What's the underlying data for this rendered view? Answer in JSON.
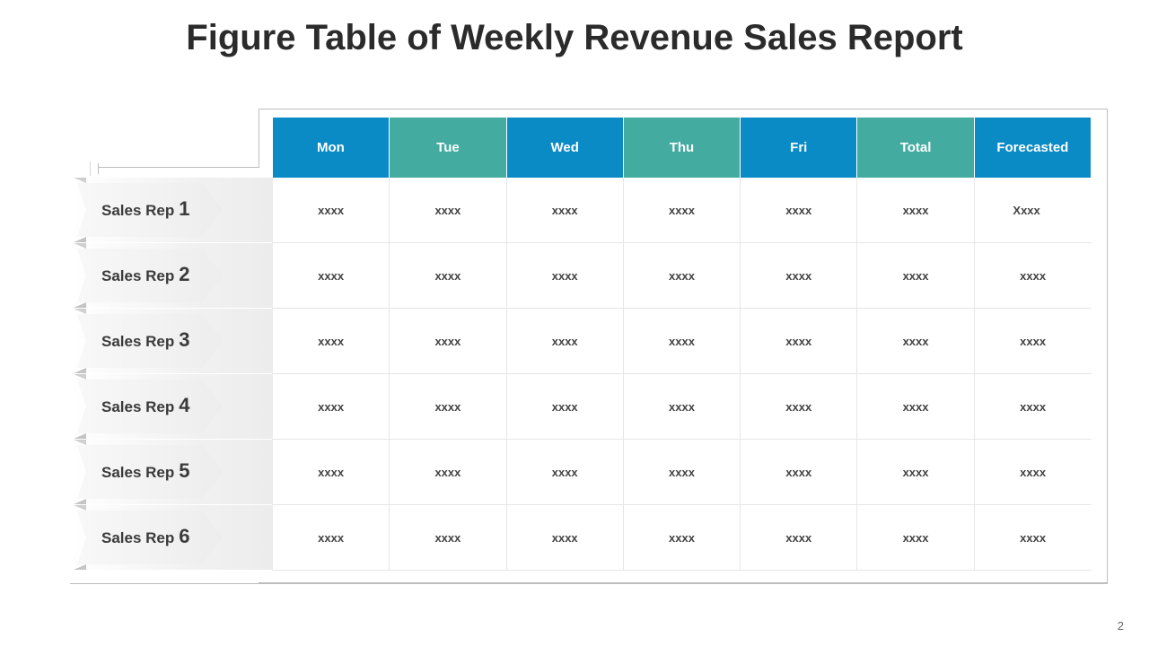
{
  "title": "Figure Table of Weekly Revenue Sales Report",
  "page_number": "2",
  "colors": {
    "header_blue": "#0a8bc6",
    "header_teal": "#43aba0"
  },
  "columns": [
    {
      "label": "Mon",
      "color": "blue"
    },
    {
      "label": "Tue",
      "color": "teal"
    },
    {
      "label": "Wed",
      "color": "blue"
    },
    {
      "label": "Thu",
      "color": "teal"
    },
    {
      "label": "Fri",
      "color": "blue"
    },
    {
      "label": "Total",
      "color": "teal"
    },
    {
      "label": "Forecasted",
      "color": "blue"
    }
  ],
  "rows": [
    {
      "label": "Sales Rep",
      "num": "1",
      "cells": [
        "xxxx",
        "xxxx",
        "xxxx",
        "xxxx",
        "xxxx",
        "xxxx",
        "Xxxx"
      ]
    },
    {
      "label": "Sales Rep",
      "num": "2",
      "cells": [
        "xxxx",
        "xxxx",
        "xxxx",
        "xxxx",
        "xxxx",
        "xxxx",
        "xxxx"
      ]
    },
    {
      "label": "Sales Rep",
      "num": "3",
      "cells": [
        "xxxx",
        "xxxx",
        "xxxx",
        "xxxx",
        "xxxx",
        "xxxx",
        "xxxx"
      ]
    },
    {
      "label": "Sales Rep",
      "num": "4",
      "cells": [
        "xxxx",
        "xxxx",
        "xxxx",
        "xxxx",
        "xxxx",
        "xxxx",
        "xxxx"
      ]
    },
    {
      "label": "Sales Rep",
      "num": "5",
      "cells": [
        "xxxx",
        "xxxx",
        "xxxx",
        "xxxx",
        "xxxx",
        "xxxx",
        "xxxx"
      ]
    },
    {
      "label": "Sales Rep",
      "num": "6",
      "cells": [
        "xxxx",
        "xxxx",
        "xxxx",
        "xxxx",
        "xxxx",
        "xxxx",
        "xxxx"
      ]
    }
  ]
}
